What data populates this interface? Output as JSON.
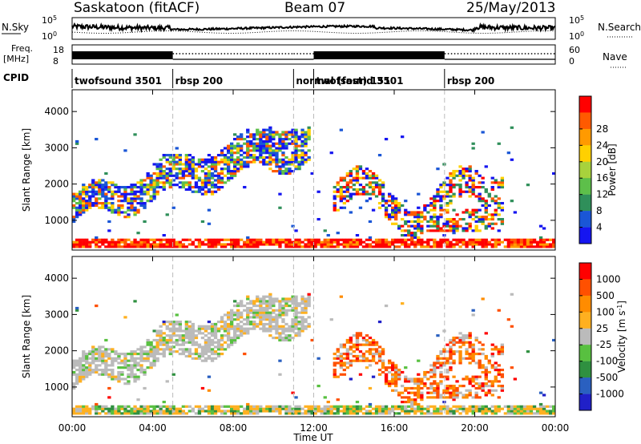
{
  "header": {
    "station": "Saskatoon (fitACF)",
    "beam": "Beam 07",
    "date": "25/May/2013"
  },
  "noise_panel": {
    "left_label": "N.Sky",
    "right_label": "N.Search",
    "left_ticks": [
      "10^5",
      "10^0"
    ],
    "right_ticks": [
      "10^5",
      "10^0"
    ]
  },
  "freq_panel": {
    "left_label_line1": "Freq.",
    "left_label_line2": "[MHz]",
    "right_label": "Nave",
    "left_ticks": [
      "18",
      "8"
    ],
    "right_ticks": [
      "60",
      "0"
    ]
  },
  "cpid": {
    "label": "CPID",
    "segments": [
      {
        "name": "twofsound 3501",
        "start": 0.0,
        "end": 5.0
      },
      {
        "name": "rbsp 200",
        "start": 5.0,
        "end": 11.0
      },
      {
        "name": "normal (fast) 151",
        "start": 11.0,
        "end": 12.0
      },
      {
        "name": "twofsound 3501",
        "start": 12.0,
        "end": 18.5
      },
      {
        "name": "rbsp 200",
        "start": 18.5,
        "end": 24.0
      }
    ]
  },
  "chart_data": [
    {
      "type": "heatmap",
      "title": "",
      "xlabel": "Time UT",
      "ylabel": "Slant Range [km]",
      "xlim": [
        0,
        24
      ],
      "ylim": [
        180,
        4600
      ],
      "x_ticks": [
        "00:00",
        "04:00",
        "08:00",
        "12:00",
        "16:00",
        "20:00",
        "00:00"
      ],
      "y_ticks": [
        1000,
        2000,
        3000,
        4000
      ],
      "colorbar": {
        "label": "Power [dB]",
        "ticks": [
          4,
          8,
          12,
          16,
          20,
          24,
          28
        ],
        "colors": [
          "#1515f0",
          "#1a56d6",
          "#2f8f5a",
          "#5dbf4a",
          "#a8d23c",
          "#ffd000",
          "#ff9a00",
          "#ff5a00",
          "#ff0000"
        ]
      },
      "features": [
        {
          "region": "near-range ground scatter",
          "t_start": 0,
          "t_end": 24,
          "range_km": [
            250,
            500
          ],
          "dominant_power_dB": 28
        },
        {
          "region": "arc rising from 1200 km",
          "t_start": 0,
          "t_end": 11.8,
          "range_km": [
            1000,
            3500
          ],
          "dominant_power_dB": 16
        },
        {
          "region": "evening echoes",
          "t_start": 13,
          "t_end": 21.5,
          "range_km": [
            800,
            2500
          ],
          "dominant_power_dB": 20
        }
      ]
    },
    {
      "type": "heatmap",
      "title": "",
      "xlabel": "Time UT",
      "ylabel": "Slant Range [km]",
      "xlim": [
        0,
        24
      ],
      "ylim": [
        180,
        4600
      ],
      "x_ticks": [
        "00:00",
        "04:00",
        "08:00",
        "12:00",
        "16:00",
        "20:00",
        "00:00"
      ],
      "y_ticks": [
        1000,
        2000,
        3000,
        4000
      ],
      "colorbar": {
        "label": "Velocity [m s^-1]",
        "ticks": [
          "1000",
          "500",
          "100",
          "25",
          "-25",
          "-100",
          "-500",
          "-1000"
        ],
        "colors": [
          "#2020c8",
          "#2a60c0",
          "#2f9040",
          "#58c040",
          "#bbbbbb",
          "#ffb020",
          "#ff8c00",
          "#ff5000",
          "#ff0000"
        ]
      },
      "features": [
        {
          "region": "ground scatter arc",
          "t_start": 0,
          "t_end": 11.8,
          "range_km": [
            1000,
            3500
          ],
          "dominant_velocity": "-25..25"
        },
        {
          "region": "near-range",
          "t_start": 0,
          "t_end": 24,
          "range_km": [
            250,
            500
          ],
          "dominant_velocity": "-100..100"
        },
        {
          "region": "evening flows",
          "t_start": 13,
          "t_end": 21.5,
          "range_km": [
            800,
            2500
          ],
          "dominant_velocity": "-500..-100"
        }
      ]
    }
  ]
}
